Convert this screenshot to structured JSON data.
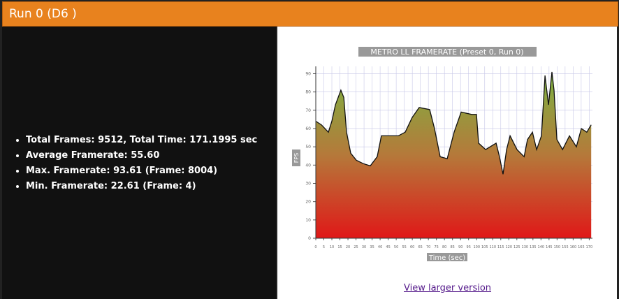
{
  "header": {
    "title": "Run 0 (D6 )"
  },
  "stats": [
    "Total Frames: 9512, Total Time: 171.1995 sec",
    "Average Framerate: 55.60",
    "Max. Framerate: 93.61 (Frame: 8004)",
    "Min. Framerate: 22.61 (Frame: 4)"
  ],
  "link": "View larger version",
  "chart_data": {
    "type": "area",
    "title": "METRO LL FRAMERATE (Preset 0, Run 0)",
    "xlabel": "Time (sec)",
    "ylabel": "FPS",
    "x": [
      0,
      3.5,
      7.8,
      10,
      12.2,
      15.6,
      17.4,
      19.1,
      21.7,
      25.2,
      29.5,
      33.9,
      38.2,
      40.8,
      44.7,
      51.3,
      55.6,
      59.9,
      64.3,
      70.8,
      73.8,
      77.3,
      81.7,
      86,
      90.4,
      96.9,
      99.9,
      101.2,
      105.6,
      112.1,
      114.2,
      116.4,
      118.6,
      120.8,
      125.1,
      129.5,
      131.6,
      134.7,
      137.3,
      140.3,
      142.5,
      144.7,
      146.8,
      148.1,
      149.9,
      153.4,
      157.7,
      162,
      165.1,
      168.5,
      171.2
    ],
    "values": [
      64,
      62,
      58,
      64,
      73,
      81,
      77,
      58,
      46.5,
      42.7,
      40.8,
      39.6,
      44.6,
      56,
      56,
      56,
      58,
      66,
      71.5,
      70.4,
      60,
      44.6,
      43.5,
      58,
      69,
      67.7,
      67.7,
      52,
      48.5,
      52,
      44.6,
      35,
      48.5,
      56,
      48.5,
      44.6,
      54,
      58,
      48.5,
      56,
      89,
      73,
      91,
      81,
      54,
      48.5,
      56,
      50,
      60,
      58,
      62
    ],
    "xlim": [
      0,
      172
    ],
    "ylim": [
      0,
      94
    ],
    "xticks": [
      0,
      5,
      10,
      15,
      20,
      25,
      30,
      35,
      40,
      45,
      50,
      55,
      60,
      65,
      70,
      75,
      80,
      85,
      90,
      95,
      100,
      105,
      110,
      115,
      120,
      125,
      130,
      135,
      140,
      145,
      150,
      155,
      160,
      165,
      170
    ],
    "yticks": [
      0,
      10,
      20,
      30,
      40,
      50,
      60,
      70,
      80,
      90
    ],
    "grid": true
  }
}
